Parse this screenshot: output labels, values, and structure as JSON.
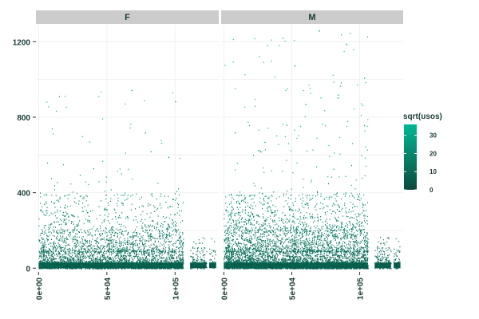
{
  "chart_data": {
    "type": "scatter",
    "facets": [
      {
        "label": "F",
        "xmax": 130000
      },
      {
        "label": "M",
        "xmax": 130000
      }
    ],
    "x_ticks": [
      {
        "value": 0,
        "label": "0e+00"
      },
      {
        "value": 50000,
        "label": "5e+04"
      },
      {
        "value": 100000,
        "label": "1e+05"
      }
    ],
    "y_ticks": [
      {
        "value": 0,
        "label": "0"
      },
      {
        "value": 400,
        "label": "400"
      },
      {
        "value": 800,
        "label": "800"
      },
      {
        "value": 1200,
        "label": "1200"
      }
    ],
    "xlim": [
      -2000,
      132000
    ],
    "ylim": [
      -20,
      1290
    ],
    "grid": true,
    "gaps": [
      [
        106000,
        111000
      ],
      [
        123000,
        125000
      ]
    ],
    "density": {
      "F": {
        "bands": [
          [
            0,
            30
          ],
          [
            30,
            90
          ],
          [
            90,
            200
          ],
          [
            200,
            400
          ],
          [
            400,
            950
          ]
        ],
        "counts": [
          1400,
          1300,
          1100,
          500,
          60
        ]
      },
      "M": {
        "bands": [
          [
            0,
            30
          ],
          [
            30,
            90
          ],
          [
            90,
            200
          ],
          [
            200,
            400
          ],
          [
            400,
            1260
          ]
        ],
        "counts": [
          1600,
          1600,
          1500,
          900,
          160
        ]
      }
    },
    "outliers": {
      "F": [
        [
          68000,
          945
        ],
        [
          100000,
          885
        ],
        [
          78000,
          720
        ],
        [
          82000,
          620
        ],
        [
          95000,
          590
        ],
        [
          40000,
          530
        ]
      ],
      "M": [
        [
          52000,
          1075
        ],
        [
          70000,
          1260
        ],
        [
          84000,
          920
        ],
        [
          60000,
          870
        ],
        [
          46000,
          760
        ],
        [
          8000,
          720
        ],
        [
          30000,
          670
        ]
      ]
    },
    "color_scale": {
      "title": "sqrt(usos)",
      "low": "#0b4a3d",
      "high": "#00b894",
      "range": [
        0,
        36
      ],
      "ticks": [
        0,
        10,
        20,
        30
      ]
    },
    "colors": {
      "panel_bg": "#ffffff",
      "strip_bg": "#cccccc",
      "grid": "#f0f0f0"
    }
  }
}
